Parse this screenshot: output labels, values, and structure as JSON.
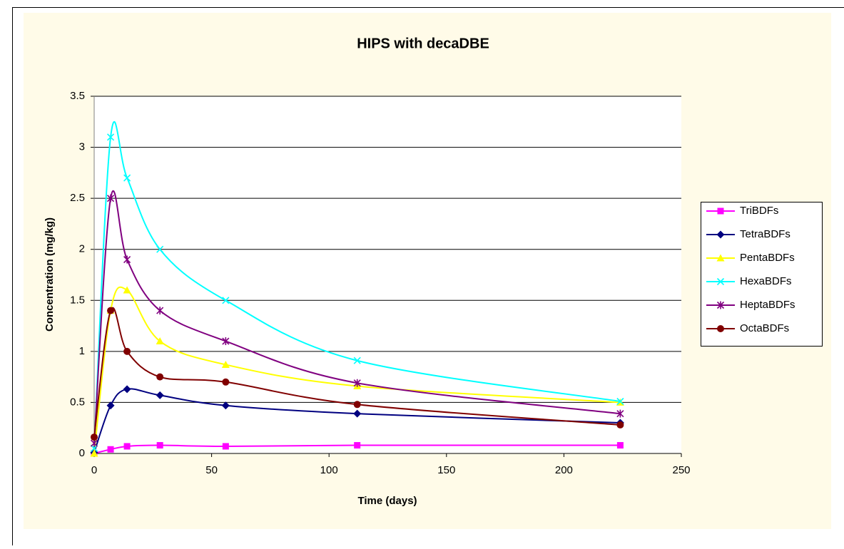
{
  "chart_data": {
    "type": "line",
    "title": "HIPS with decaDBE",
    "x_label": "Time (days)",
    "y_label": "Concentration (mg/kg)",
    "x": [
      0,
      7,
      14,
      28,
      56,
      112,
      224
    ],
    "series": [
      {
        "name": "TriBDFs",
        "color": "#ff00ff",
        "marker": "square",
        "values": [
          0,
          0.04,
          0.07,
          0.08,
          0.07,
          0.08,
          0.08
        ]
      },
      {
        "name": "TetraBDFs",
        "color": "#000080",
        "marker": "diamond",
        "values": [
          0.01,
          0.47,
          0.63,
          0.57,
          0.47,
          0.39,
          0.3
        ]
      },
      {
        "name": "PentaBDFs",
        "color": "#ffff00",
        "marker": "triangle",
        "values": [
          0,
          1.4,
          1.6,
          1.1,
          0.87,
          0.66,
          0.5
        ]
      },
      {
        "name": "HexaBDFs",
        "color": "#00ffff",
        "marker": "x",
        "values": [
          0.05,
          3.1,
          2.7,
          2.0,
          1.5,
          0.91,
          0.51
        ]
      },
      {
        "name": "HeptaBDFs",
        "color": "#800080",
        "marker": "asterisk",
        "values": [
          0.1,
          2.5,
          1.9,
          1.4,
          1.1,
          0.69,
          0.39
        ]
      },
      {
        "name": "OctaBDFs",
        "color": "#800000",
        "marker": "circle",
        "values": [
          0.16,
          1.4,
          1.0,
          0.75,
          0.7,
          0.48,
          0.28
        ]
      }
    ],
    "xlim": [
      0,
      250
    ],
    "xticks": [
      0,
      50,
      100,
      150,
      200,
      250
    ],
    "ylim": [
      0,
      3.5
    ],
    "yticks": [
      0,
      0.5,
      1,
      1.5,
      2,
      2.5,
      3,
      3.5
    ],
    "grid": true,
    "smooth": true,
    "legend": "right"
  }
}
